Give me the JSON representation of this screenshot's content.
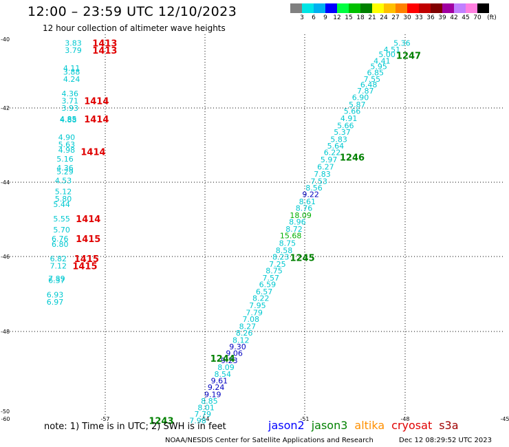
{
  "header": {
    "title": "12:00 – 23:59 UTC 12/10/2023",
    "subtitle": "12 hour collection of altimeter wave heights"
  },
  "colorbar": {
    "colors": [
      "#808080",
      "#00e5e5",
      "#00b0f0",
      "#0000ff",
      "#00ff40",
      "#00c000",
      "#008000",
      "#ffff00",
      "#ffc000",
      "#ff8000",
      "#ff0000",
      "#c00000",
      "#800000",
      "#a000a0",
      "#c080ff",
      "#ff80e0",
      "#000000"
    ],
    "labels": [
      "3",
      "6",
      "9",
      "12",
      "15",
      "18",
      "21",
      "24",
      "27",
      "30",
      "33",
      "36",
      "39",
      "42",
      "45",
      "70",
      "(ft)"
    ]
  },
  "axes": {
    "x_ticks": [
      "-60",
      "-57",
      "-54",
      "-51",
      "-48",
      "-45"
    ],
    "y_ticks": [
      "-40",
      "-42",
      "-44",
      "-46",
      "-48",
      "-50"
    ]
  },
  "colors": {
    "swh_cyan": "#00c8d0",
    "swh_blue": "#0000c0",
    "swh_green": "#00b000",
    "time_red": "#e00000",
    "time_green": "#008000"
  },
  "chart_data": {
    "type": "scatter",
    "xlim": [
      -60,
      -45
    ],
    "ylim": [
      -50.2,
      -39.9
    ],
    "swh_labels": [
      {
        "lon": -48.1,
        "lat": -40.0,
        "t": "5.36",
        "c": "cyan"
      },
      {
        "lon": -48.4,
        "lat": -40.18,
        "t": "4.51",
        "c": "cyan"
      },
      {
        "lon": -48.55,
        "lat": -40.32,
        "t": "5.00",
        "c": "cyan"
      },
      {
        "lon": -48.7,
        "lat": -40.5,
        "t": "4.41",
        "c": "cyan"
      },
      {
        "lon": -48.8,
        "lat": -40.65,
        "t": "5.95",
        "c": "cyan"
      },
      {
        "lon": -48.9,
        "lat": -40.82,
        "t": "6.85",
        "c": "cyan"
      },
      {
        "lon": -49.0,
        "lat": -41.0,
        "t": "7.55",
        "c": "cyan"
      },
      {
        "lon": -49.1,
        "lat": -41.15,
        "t": "6.48",
        "c": "cyan"
      },
      {
        "lon": -49.2,
        "lat": -41.32,
        "t": "7.87",
        "c": "cyan"
      },
      {
        "lon": -49.35,
        "lat": -41.5,
        "t": "6.90",
        "c": "cyan"
      },
      {
        "lon": -49.45,
        "lat": -41.7,
        "t": "5.87",
        "c": "cyan"
      },
      {
        "lon": -49.6,
        "lat": -41.88,
        "t": "5.66",
        "c": "cyan"
      },
      {
        "lon": -49.7,
        "lat": -42.08,
        "t": "4.91",
        "c": "cyan"
      },
      {
        "lon": -49.8,
        "lat": -42.28,
        "t": "5.66",
        "c": "cyan"
      },
      {
        "lon": -49.9,
        "lat": -42.46,
        "t": "5.37",
        "c": "cyan"
      },
      {
        "lon": -50.0,
        "lat": -42.66,
        "t": "5.83",
        "c": "cyan"
      },
      {
        "lon": -50.1,
        "lat": -42.84,
        "t": "5.64",
        "c": "cyan"
      },
      {
        "lon": -50.2,
        "lat": -43.02,
        "t": "6.22",
        "c": "cyan"
      },
      {
        "lon": -50.3,
        "lat": -43.22,
        "t": "5.97",
        "c": "cyan"
      },
      {
        "lon": -50.4,
        "lat": -43.42,
        "t": "6.27",
        "c": "cyan"
      },
      {
        "lon": -50.5,
        "lat": -43.62,
        "t": "7.83",
        "c": "cyan"
      },
      {
        "lon": -50.6,
        "lat": -43.82,
        "t": "7.53",
        "c": "cyan"
      },
      {
        "lon": -50.75,
        "lat": -44.0,
        "t": "8.56",
        "c": "cyan"
      },
      {
        "lon": -50.85,
        "lat": -44.18,
        "t": "9.22",
        "c": "blue"
      },
      {
        "lon": -50.95,
        "lat": -44.38,
        "t": "8.61",
        "c": "cyan"
      },
      {
        "lon": -51.05,
        "lat": -44.56,
        "t": "8.76",
        "c": "cyan"
      },
      {
        "lon": -51.15,
        "lat": -44.76,
        "t": "18.09",
        "c": "green"
      },
      {
        "lon": -51.25,
        "lat": -44.94,
        "t": "8.96",
        "c": "cyan"
      },
      {
        "lon": -51.35,
        "lat": -45.14,
        "t": "8.72",
        "c": "cyan"
      },
      {
        "lon": -51.45,
        "lat": -45.32,
        "t": "15.68",
        "c": "green"
      },
      {
        "lon": -51.55,
        "lat": -45.52,
        "t": "8.75",
        "c": "cyan"
      },
      {
        "lon": -51.65,
        "lat": -45.72,
        "t": "8.58",
        "c": "cyan"
      },
      {
        "lon": -51.75,
        "lat": -45.9,
        "t": "8.23",
        "c": "cyan"
      },
      {
        "lon": -51.85,
        "lat": -46.1,
        "t": "7.25",
        "c": "cyan"
      },
      {
        "lon": -51.95,
        "lat": -46.28,
        "t": "8.75",
        "c": "cyan"
      },
      {
        "lon": -52.05,
        "lat": -46.48,
        "t": "7.57",
        "c": "cyan"
      },
      {
        "lon": -52.15,
        "lat": -46.66,
        "t": "6.59",
        "c": "cyan"
      },
      {
        "lon": -52.25,
        "lat": -46.86,
        "t": "6.57",
        "c": "cyan"
      },
      {
        "lon": -52.35,
        "lat": -47.04,
        "t": "8.22",
        "c": "cyan"
      },
      {
        "lon": -52.45,
        "lat": -47.24,
        "t": "7.95",
        "c": "cyan"
      },
      {
        "lon": -52.55,
        "lat": -47.44,
        "t": "7.79",
        "c": "cyan"
      },
      {
        "lon": -52.65,
        "lat": -47.62,
        "t": "7.08",
        "c": "cyan"
      },
      {
        "lon": -52.75,
        "lat": -47.82,
        "t": "8.27",
        "c": "cyan"
      },
      {
        "lon": -52.85,
        "lat": -48.0,
        "t": "8.26",
        "c": "cyan"
      },
      {
        "lon": -52.95,
        "lat": -48.2,
        "t": "8.12",
        "c": "cyan"
      },
      {
        "lon": -53.05,
        "lat": -48.38,
        "t": "9.30",
        "c": "blue"
      },
      {
        "lon": -53.15,
        "lat": -48.56,
        "t": "9.06",
        "c": "blue"
      },
      {
        "lon": -53.3,
        "lat": -48.76,
        "t": "9.23",
        "c": "blue"
      },
      {
        "lon": -53.4,
        "lat": -48.95,
        "t": "8.09",
        "c": "cyan"
      },
      {
        "lon": -53.5,
        "lat": -49.14,
        "t": "8.54",
        "c": "cyan"
      },
      {
        "lon": -53.6,
        "lat": -49.32,
        "t": "9.61",
        "c": "blue"
      },
      {
        "lon": -53.7,
        "lat": -49.5,
        "t": "9.24",
        "c": "blue"
      },
      {
        "lon": -53.8,
        "lat": -49.7,
        "t": "9.19",
        "c": "blue"
      },
      {
        "lon": -53.9,
        "lat": -49.88,
        "t": "8.85",
        "c": "cyan"
      },
      {
        "lon": -54.0,
        "lat": -50.06,
        "t": "8.01",
        "c": "cyan"
      },
      {
        "lon": -54.1,
        "lat": -50.24,
        "t": "7.79",
        "c": "cyan"
      },
      {
        "lon": -54.25,
        "lat": -50.42,
        "t": "7.98",
        "c": "cyan"
      },
      {
        "lon": -58.0,
        "lat": -40.0,
        "t": "3.83",
        "c": "cyan"
      },
      {
        "lon": -58.0,
        "lat": -40.2,
        "t": "3.79",
        "c": "cyan"
      },
      {
        "lon": -58.05,
        "lat": -40.7,
        "t": "4.11",
        "c": "cyan"
      },
      {
        "lon": -58.05,
        "lat": -40.8,
        "t": "3.88",
        "c": "cyan"
      },
      {
        "lon": -58.05,
        "lat": -41.0,
        "t": "4.24",
        "c": "cyan"
      },
      {
        "lon": -58.1,
        "lat": -41.4,
        "t": "4.36",
        "c": "cyan"
      },
      {
        "lon": -58.1,
        "lat": -41.6,
        "t": "3.71",
        "c": "cyan"
      },
      {
        "lon": -58.1,
        "lat": -41.8,
        "t": "3.93",
        "c": "cyan"
      },
      {
        "lon": -58.15,
        "lat": -42.1,
        "t": "4.85",
        "c": "cyan"
      },
      {
        "lon": -58.15,
        "lat": -42.12,
        "t": "4.88",
        "c": "cyan"
      },
      {
        "lon": -58.2,
        "lat": -42.6,
        "t": "4.90",
        "c": "cyan"
      },
      {
        "lon": -58.2,
        "lat": -42.8,
        "t": "5.63",
        "c": "cyan"
      },
      {
        "lon": -58.2,
        "lat": -42.95,
        "t": "4.98",
        "c": "cyan"
      },
      {
        "lon": -58.25,
        "lat": -43.2,
        "t": "5.16",
        "c": "cyan"
      },
      {
        "lon": -58.25,
        "lat": -43.45,
        "t": "4.36",
        "c": "cyan"
      },
      {
        "lon": -58.25,
        "lat": -43.55,
        "t": "5.29",
        "c": "cyan"
      },
      {
        "lon": -58.3,
        "lat": -43.8,
        "t": "4.53",
        "c": "cyan"
      },
      {
        "lon": -58.3,
        "lat": -44.1,
        "t": "5.12",
        "c": "cyan"
      },
      {
        "lon": -58.3,
        "lat": -44.3,
        "t": "5.80",
        "c": "cyan"
      },
      {
        "lon": -58.35,
        "lat": -44.45,
        "t": "5.44",
        "c": "cyan"
      },
      {
        "lon": -58.35,
        "lat": -44.85,
        "t": "5.55",
        "c": "cyan"
      },
      {
        "lon": -58.35,
        "lat": -45.15,
        "t": "5.70",
        "c": "cyan"
      },
      {
        "lon": -58.4,
        "lat": -45.4,
        "t": "6.76",
        "c": "cyan"
      },
      {
        "lon": -58.4,
        "lat": -45.55,
        "t": "6.80",
        "c": "cyan"
      },
      {
        "lon": -58.45,
        "lat": -45.95,
        "t": "6.82",
        "c": "cyan"
      },
      {
        "lon": -58.45,
        "lat": -46.15,
        "t": "7.12",
        "c": "cyan"
      },
      {
        "lon": -58.5,
        "lat": -46.5,
        "t": "7.89",
        "c": "cyan"
      },
      {
        "lon": -58.5,
        "lat": -46.55,
        "t": "6.37",
        "c": "cyan"
      },
      {
        "lon": -58.55,
        "lat": -46.95,
        "t": "6.93",
        "c": "cyan"
      },
      {
        "lon": -58.55,
        "lat": -47.15,
        "t": "6.97",
        "c": "cyan"
      }
    ],
    "time_labels": [
      {
        "lon": -57.05,
        "lat": -40.0,
        "t": "1413",
        "c": "red"
      },
      {
        "lon": -57.05,
        "lat": -40.2,
        "t": "1413",
        "c": "red"
      },
      {
        "lon": -57.3,
        "lat": -41.6,
        "t": "1414",
        "c": "red"
      },
      {
        "lon": -57.3,
        "lat": -42.1,
        "t": "1414",
        "c": "red"
      },
      {
        "lon": -57.4,
        "lat": -43.0,
        "t": "1414",
        "c": "red"
      },
      {
        "lon": -57.55,
        "lat": -44.85,
        "t": "1414",
        "c": "red"
      },
      {
        "lon": -57.55,
        "lat": -45.4,
        "t": "1415",
        "c": "red"
      },
      {
        "lon": -57.6,
        "lat": -45.95,
        "t": "1415",
        "c": "red"
      },
      {
        "lon": -57.65,
        "lat": -46.15,
        "t": "1415",
        "c": "red"
      },
      {
        "lon": -47.9,
        "lat": -40.35,
        "t": "1247",
        "c": "green"
      },
      {
        "lon": -49.6,
        "lat": -43.15,
        "t": "1246",
        "c": "green"
      },
      {
        "lon": -51.1,
        "lat": -45.92,
        "t": "1245",
        "c": "green"
      },
      {
        "lon": -53.5,
        "lat": -48.7,
        "t": "1244",
        "c": "green"
      },
      {
        "lon": -55.35,
        "lat": -50.42,
        "t": "1243",
        "c": "green"
      }
    ]
  },
  "footer": {
    "note": "note:  1) Time is in UTC;  2) SWH is in feet",
    "satellites": [
      {
        "name": "jason2",
        "color": "#0000ff"
      },
      {
        "name": "jason3",
        "color": "#008000"
      },
      {
        "name": "altika",
        "color": "#ff9000"
      },
      {
        "name": "cryosat",
        "color": "#e00000"
      },
      {
        "name": "s3a",
        "color": "#a00000"
      }
    ],
    "credit": "NOAA/NESDIS Center for Satellite Applications and Research",
    "timestamp": "Dec 12 08:29:52 UTC 2023"
  }
}
